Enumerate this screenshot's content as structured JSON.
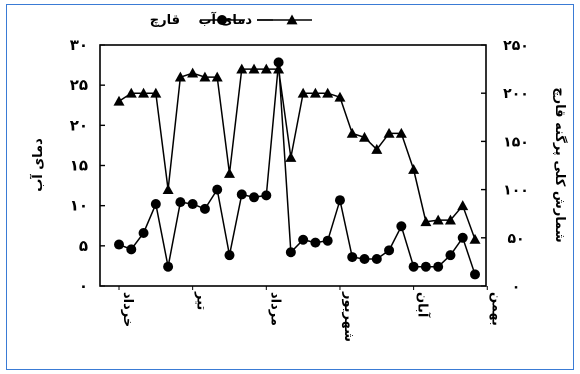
{
  "chart_data": {
    "type": "line",
    "legend": {
      "placement": "top",
      "items": [
        {
          "label": "قارچ",
          "marker": "circle"
        },
        {
          "label": "دمای آب",
          "marker": "triangle"
        }
      ]
    },
    "left_axis": {
      "label": "دمای آب",
      "ylim": [
        0,
        30
      ],
      "ticks": [
        0,
        5,
        10,
        15,
        20,
        25,
        30
      ],
      "tick_labels": [
        "۰",
        "۵",
        "۱۰",
        "۱۵",
        "۲۰",
        "۲۵",
        "۳۰"
      ]
    },
    "right_axis": {
      "label": "شمارش کلی پرگنه قارچ",
      "ylim": [
        0,
        250
      ],
      "ticks": [
        0,
        50,
        100,
        150,
        200,
        250
      ],
      "tick_labels": [
        "۰",
        "۵۰",
        "۱۰۰",
        "۱۵۰",
        "۲۰۰",
        "۲۵۰"
      ]
    },
    "x_labels": [
      {
        "text": "خرداد",
        "index": 0
      },
      {
        "text": "تیر",
        "index": 6
      },
      {
        "text": "مرداد",
        "index": 12
      },
      {
        "text": "شهریور",
        "index": 18
      },
      {
        "text": "آبان",
        "index": 24
      },
      {
        "text": "بهمن",
        "index": 30
      }
    ],
    "series": [
      {
        "name": "دمای آب",
        "axis": "left",
        "marker": "triangle",
        "values": [
          23,
          24,
          24,
          24,
          12,
          26,
          26.5,
          26,
          26,
          14,
          27,
          27,
          27,
          27,
          16,
          24,
          24,
          24,
          23.5,
          19,
          18.5,
          17,
          19,
          19,
          14.5,
          8,
          8.2,
          8.2,
          10,
          5.8
        ]
      },
      {
        "name": "قارچ",
        "axis": "right",
        "marker": "circle",
        "values": [
          43,
          38,
          55,
          85,
          20,
          87,
          85,
          80,
          100,
          32,
          95,
          92,
          94,
          232,
          35,
          48,
          45,
          47,
          89,
          30,
          28,
          28,
          37,
          62,
          20,
          20,
          20,
          32,
          50,
          12
        ]
      }
    ]
  }
}
